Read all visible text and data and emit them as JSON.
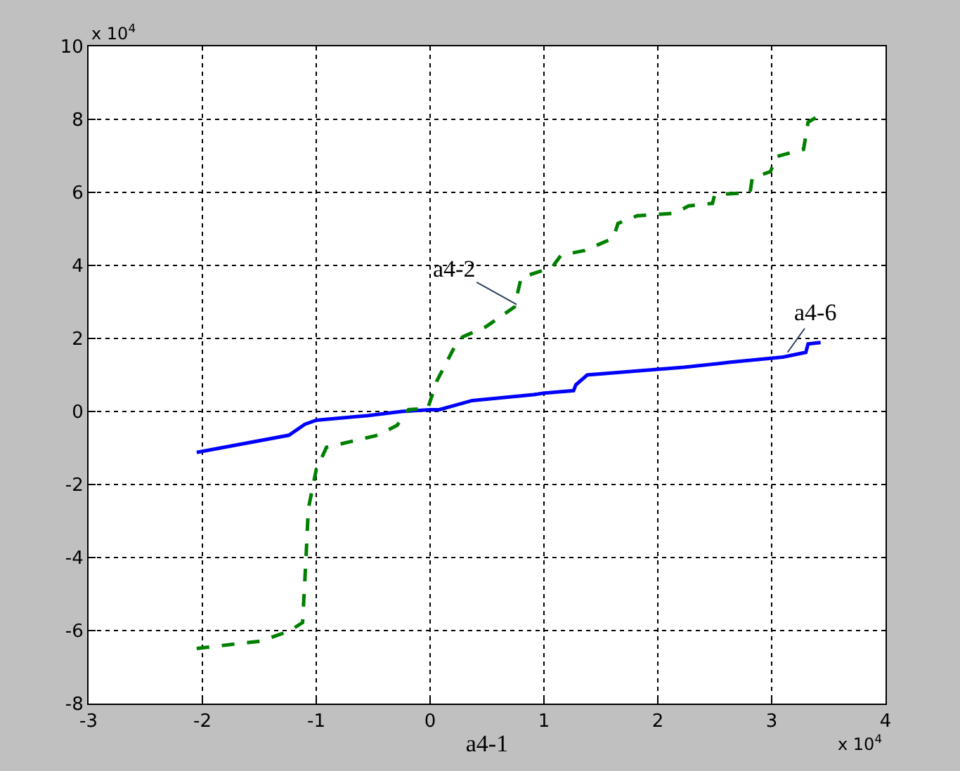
{
  "chart_data": {
    "type": "line",
    "xlabel": "a4-1",
    "xlim": [
      -3,
      4
    ],
    "xticks": [
      -3,
      -2,
      -1,
      0,
      1,
      2,
      3,
      4
    ],
    "ylim": [
      -8,
      10
    ],
    "yticks": [
      -8,
      -6,
      -4,
      -2,
      0,
      2,
      4,
      6,
      8,
      10
    ],
    "grid": true,
    "series": [
      {
        "color": "#0000ff",
        "line_style": "solid",
        "x": [
          -2.05,
          -1.24,
          -1.1,
          -1.0,
          -0.54,
          -0.25,
          0,
          0.08,
          0.37,
          0.91,
          0.99,
          1.26,
          1.28,
          1.38,
          1.82,
          2.23,
          2.64,
          3.1,
          3.3,
          3.32,
          3.43
        ],
        "values": [
          -1.12,
          -0.65,
          -0.35,
          -0.24,
          -0.11,
          0,
          0.05,
          0.05,
          0.3,
          0.46,
          0.5,
          0.57,
          0.73,
          1.0,
          1.11,
          1.21,
          1.35,
          1.49,
          1.62,
          1.85,
          1.89
        ]
      },
      {
        "color": "#008000",
        "line_style": "dashed",
        "x": [
          -2.05,
          -1.49,
          -1.24,
          -1.12,
          -1.09,
          -1.07,
          -1.0,
          -0.91,
          -0.46,
          -0.29,
          -0.19,
          -0.02,
          0.06,
          0.24,
          0.29,
          0.49,
          0.74,
          0.8,
          1.07,
          1.15,
          1.36,
          1.61,
          1.65,
          1.82,
          2.15,
          2.27,
          2.48,
          2.5,
          2.81,
          2.83,
          2.99,
          3.04,
          3.28,
          3.32,
          3.43
        ],
        "values": [
          -6.49,
          -6.29,
          -6.02,
          -5.78,
          -4.02,
          -2.67,
          -1.59,
          -0.98,
          -0.65,
          -0.38,
          0.05,
          0.09,
          0.84,
          1.92,
          2.05,
          2.32,
          2.86,
          3.67,
          3.94,
          4.28,
          4.41,
          4.75,
          5.15,
          5.36,
          5.43,
          5.63,
          5.7,
          5.94,
          5.99,
          6.4,
          6.57,
          6.98,
          7.18,
          7.92,
          8.13
        ]
      }
    ],
    "annotations": [
      {
        "text": "a4-6",
        "x": 3.14,
        "y": 1.62
      },
      {
        "text": "a4-2",
        "x": 0.76,
        "y": 2.93
      },
      "x 10$^{4}$",
      "x 10$^{4}$"
    ]
  }
}
